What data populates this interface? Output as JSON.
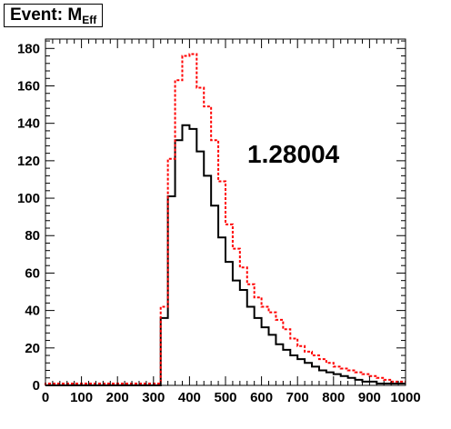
{
  "title": {
    "text": "Event: M",
    "subscript": "Eff"
  },
  "annotation": "1.28004",
  "chart_data": {
    "type": "line",
    "style": "step-histogram",
    "title": "Event: M_Eff",
    "xlabel": "",
    "ylabel": "",
    "xlim": [
      0,
      1000
    ],
    "ylim": [
      0,
      185
    ],
    "x_ticks": [
      0,
      100,
      200,
      300,
      400,
      500,
      600,
      700,
      800,
      900,
      1000
    ],
    "y_ticks": [
      0,
      20,
      40,
      60,
      80,
      100,
      120,
      140,
      160,
      180
    ],
    "grid": false,
    "bin_edges": [
      0,
      20,
      40,
      60,
      80,
      100,
      120,
      140,
      160,
      180,
      200,
      220,
      240,
      260,
      280,
      300,
      320,
      340,
      360,
      380,
      400,
      420,
      440,
      460,
      480,
      500,
      520,
      540,
      560,
      580,
      600,
      620,
      640,
      660,
      680,
      700,
      720,
      740,
      760,
      780,
      800,
      820,
      840,
      860,
      880,
      900,
      920,
      940,
      960,
      980,
      1000
    ],
    "series": [
      {
        "color": "#000000",
        "dash": "solid",
        "values": [
          0,
          0,
          0,
          0,
          0,
          0,
          0,
          0,
          0,
          0,
          0,
          0,
          0,
          0,
          0,
          0,
          36,
          101,
          131,
          139,
          137,
          125,
          112,
          96,
          79,
          66,
          56,
          51,
          42,
          36,
          31,
          27,
          22,
          19,
          16,
          14,
          12,
          10,
          8,
          7,
          6,
          5,
          4,
          3,
          2,
          2,
          1,
          1,
          1,
          1
        ]
      },
      {
        "color": "#ff0000",
        "dash": "dotted",
        "values": [
          1,
          1,
          1,
          1,
          1,
          1,
          1,
          1,
          1,
          1,
          1,
          1,
          1,
          1,
          1,
          1,
          42,
          121,
          163,
          176,
          177,
          159,
          149,
          131,
          109,
          86,
          73,
          63,
          54,
          47,
          42,
          39,
          35,
          30,
          25,
          21,
          18,
          16,
          14,
          12,
          10,
          9,
          8,
          7,
          6,
          5,
          4,
          3,
          2,
          2
        ]
      }
    ]
  }
}
